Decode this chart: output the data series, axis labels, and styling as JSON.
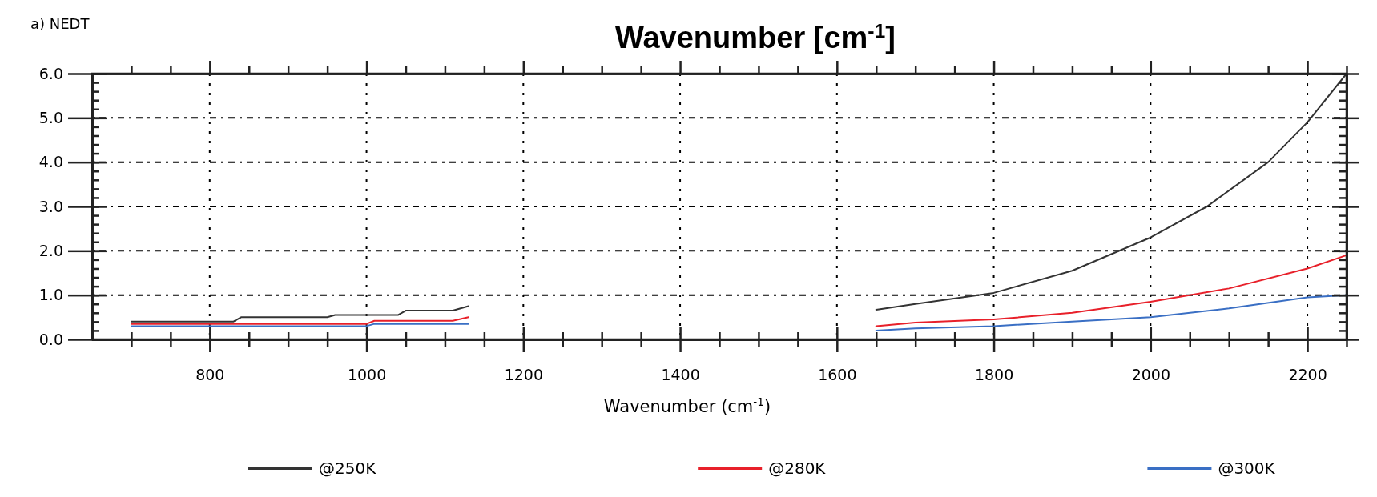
{
  "chart_data": {
    "type": "line",
    "title": "Wavenumber [cm$^{-1}$]",
    "xlabel": "Wavenumber (cm$^{-1}$)",
    "annotations": [
      "a) NEDT"
    ],
    "xlim": [
      650,
      2250
    ],
    "ylim": [
      0,
      6
    ],
    "xticks": [
      {
        "value": 700,
        "label": null
      },
      {
        "value": 750,
        "label": null
      },
      800,
      {
        "value": 850,
        "label": null
      },
      {
        "value": 900,
        "label": null
      },
      {
        "value": 950,
        "label": null
      },
      1000,
      {
        "value": 1050,
        "label": null
      },
      {
        "value": 1100,
        "label": null
      },
      {
        "value": 1150,
        "label": null
      },
      1200,
      {
        "value": 1250,
        "label": null
      },
      {
        "value": 1300,
        "label": null
      },
      {
        "value": 1350,
        "label": null
      },
      1400,
      {
        "value": 1450,
        "label": null
      },
      {
        "value": 1500,
        "label": null
      },
      {
        "value": 1550,
        "label": null
      },
      1600,
      {
        "value": 1650,
        "label": null
      },
      {
        "value": 1700,
        "label": null
      },
      {
        "value": 1750,
        "label": null
      },
      1800,
      {
        "value": 1850,
        "label": null
      },
      {
        "value": 1900,
        "label": null
      },
      {
        "value": 1950,
        "label": null
      },
      2000,
      {
        "value": 2050,
        "label": null
      },
      {
        "value": 2100,
        "label": null
      },
      {
        "value": 2150,
        "label": null
      },
      2200,
      {
        "value": 2250,
        "label": null
      }
    ],
    "yticks": [
      {
        "value": 0,
        "label": "0.0"
      },
      {
        "value": 1,
        "label": "1.0"
      },
      {
        "value": 2,
        "label": "2.0"
      },
      {
        "value": 3,
        "label": "3.0"
      },
      {
        "value": 4,
        "label": "4.0"
      },
      {
        "value": 5,
        "label": "5.0"
      },
      {
        "value": 6,
        "label": "6.0"
      }
    ],
    "grid": true,
    "legend": "bottom",
    "line_style": "solid",
    "marker": "none",
    "series": [
      {
        "name": "@250K",
        "color": "#333333",
        "x": [
          700,
          830,
          840,
          950,
          960,
          1040,
          1050,
          1110,
          1130,
          1400,
          1650,
          1700,
          1800,
          1900,
          2000,
          2072,
          2150,
          2200,
          2250
        ],
        "values": [
          0.4,
          0.4,
          0.5,
          0.5,
          0.55,
          0.55,
          0.65,
          0.65,
          0.75,
          null,
          0.67,
          0.8,
          1.05,
          1.55,
          2.3,
          3.0,
          4.0,
          4.9,
          6.0
        ]
      },
      {
        "name": "@280K",
        "color": "#e8202a",
        "x": [
          700,
          1000,
          1010,
          1110,
          1130,
          1400,
          1650,
          1700,
          1800,
          1900,
          2000,
          2100,
          2200,
          2250
        ],
        "values": [
          0.35,
          0.35,
          0.42,
          0.42,
          0.5,
          null,
          0.3,
          0.38,
          0.45,
          0.6,
          0.85,
          1.15,
          1.6,
          1.9
        ]
      },
      {
        "name": "@300K",
        "color": "#3a6fc4",
        "x": [
          700,
          1000,
          1010,
          1130,
          1400,
          1650,
          1700,
          1800,
          1900,
          2000,
          2100,
          2200,
          2250
        ],
        "values": [
          0.3,
          0.3,
          0.35,
          0.35,
          null,
          0.2,
          0.25,
          0.3,
          0.4,
          0.5,
          0.7,
          0.95,
          1.0
        ]
      }
    ]
  }
}
